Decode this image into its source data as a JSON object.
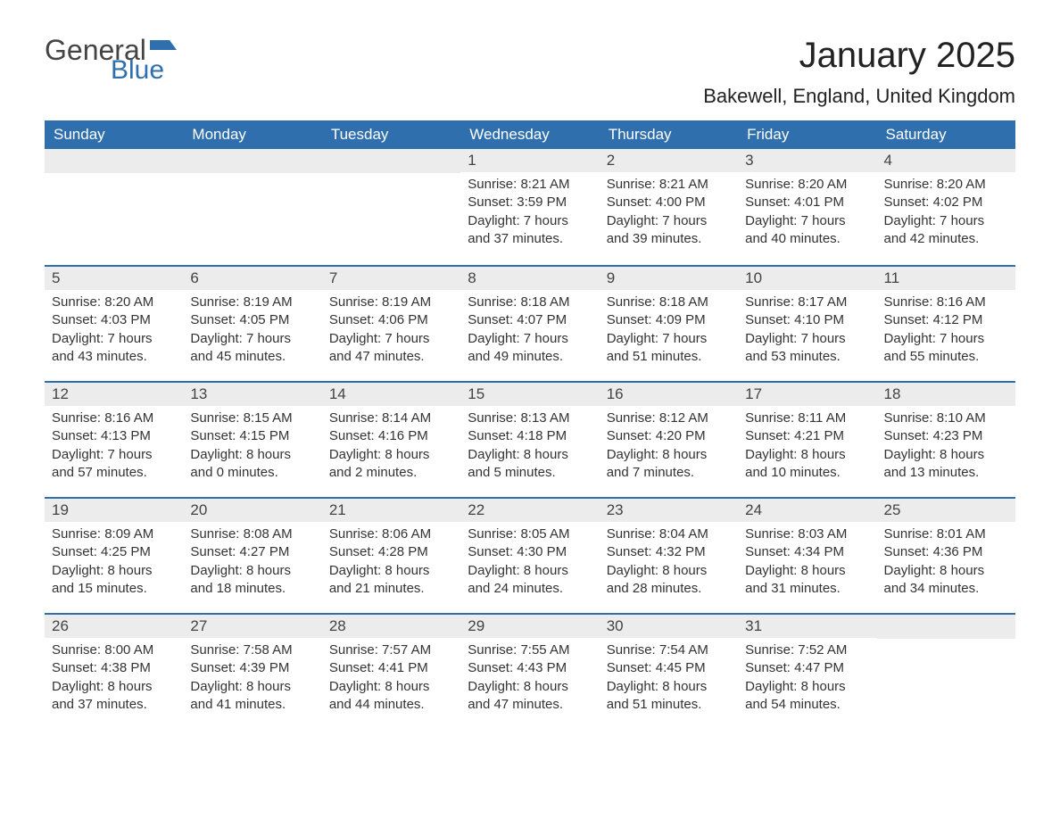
{
  "logo": {
    "general": "General",
    "blue": "Blue"
  },
  "title": "January 2025",
  "location": "Bakewell, England, United Kingdom",
  "colors": {
    "header_bg": "#2f6fad",
    "header_text": "#ffffff",
    "daynum_bg": "#ececec",
    "daynum_text": "#434343",
    "body_text": "#333333",
    "logo_gray": "#444444",
    "logo_blue": "#2f6fad",
    "week_border": "#2f6fad",
    "page_bg": "#ffffff"
  },
  "fonts": {
    "title_size": 40,
    "location_size": 22,
    "weekday_size": 17,
    "daynum_size": 17,
    "content_size": 15
  },
  "weekdays": [
    "Sunday",
    "Monday",
    "Tuesday",
    "Wednesday",
    "Thursday",
    "Friday",
    "Saturday"
  ],
  "weeks": [
    [
      null,
      null,
      null,
      {
        "n": "1",
        "sr": "Sunrise: 8:21 AM",
        "ss": "Sunset: 3:59 PM",
        "d1": "Daylight: 7 hours",
        "d2": "and 37 minutes."
      },
      {
        "n": "2",
        "sr": "Sunrise: 8:21 AM",
        "ss": "Sunset: 4:00 PM",
        "d1": "Daylight: 7 hours",
        "d2": "and 39 minutes."
      },
      {
        "n": "3",
        "sr": "Sunrise: 8:20 AM",
        "ss": "Sunset: 4:01 PM",
        "d1": "Daylight: 7 hours",
        "d2": "and 40 minutes."
      },
      {
        "n": "4",
        "sr": "Sunrise: 8:20 AM",
        "ss": "Sunset: 4:02 PM",
        "d1": "Daylight: 7 hours",
        "d2": "and 42 minutes."
      }
    ],
    [
      {
        "n": "5",
        "sr": "Sunrise: 8:20 AM",
        "ss": "Sunset: 4:03 PM",
        "d1": "Daylight: 7 hours",
        "d2": "and 43 minutes."
      },
      {
        "n": "6",
        "sr": "Sunrise: 8:19 AM",
        "ss": "Sunset: 4:05 PM",
        "d1": "Daylight: 7 hours",
        "d2": "and 45 minutes."
      },
      {
        "n": "7",
        "sr": "Sunrise: 8:19 AM",
        "ss": "Sunset: 4:06 PM",
        "d1": "Daylight: 7 hours",
        "d2": "and 47 minutes."
      },
      {
        "n": "8",
        "sr": "Sunrise: 8:18 AM",
        "ss": "Sunset: 4:07 PM",
        "d1": "Daylight: 7 hours",
        "d2": "and 49 minutes."
      },
      {
        "n": "9",
        "sr": "Sunrise: 8:18 AM",
        "ss": "Sunset: 4:09 PM",
        "d1": "Daylight: 7 hours",
        "d2": "and 51 minutes."
      },
      {
        "n": "10",
        "sr": "Sunrise: 8:17 AM",
        "ss": "Sunset: 4:10 PM",
        "d1": "Daylight: 7 hours",
        "d2": "and 53 minutes."
      },
      {
        "n": "11",
        "sr": "Sunrise: 8:16 AM",
        "ss": "Sunset: 4:12 PM",
        "d1": "Daylight: 7 hours",
        "d2": "and 55 minutes."
      }
    ],
    [
      {
        "n": "12",
        "sr": "Sunrise: 8:16 AM",
        "ss": "Sunset: 4:13 PM",
        "d1": "Daylight: 7 hours",
        "d2": "and 57 minutes."
      },
      {
        "n": "13",
        "sr": "Sunrise: 8:15 AM",
        "ss": "Sunset: 4:15 PM",
        "d1": "Daylight: 8 hours",
        "d2": "and 0 minutes."
      },
      {
        "n": "14",
        "sr": "Sunrise: 8:14 AM",
        "ss": "Sunset: 4:16 PM",
        "d1": "Daylight: 8 hours",
        "d2": "and 2 minutes."
      },
      {
        "n": "15",
        "sr": "Sunrise: 8:13 AM",
        "ss": "Sunset: 4:18 PM",
        "d1": "Daylight: 8 hours",
        "d2": "and 5 minutes."
      },
      {
        "n": "16",
        "sr": "Sunrise: 8:12 AM",
        "ss": "Sunset: 4:20 PM",
        "d1": "Daylight: 8 hours",
        "d2": "and 7 minutes."
      },
      {
        "n": "17",
        "sr": "Sunrise: 8:11 AM",
        "ss": "Sunset: 4:21 PM",
        "d1": "Daylight: 8 hours",
        "d2": "and 10 minutes."
      },
      {
        "n": "18",
        "sr": "Sunrise: 8:10 AM",
        "ss": "Sunset: 4:23 PM",
        "d1": "Daylight: 8 hours",
        "d2": "and 13 minutes."
      }
    ],
    [
      {
        "n": "19",
        "sr": "Sunrise: 8:09 AM",
        "ss": "Sunset: 4:25 PM",
        "d1": "Daylight: 8 hours",
        "d2": "and 15 minutes."
      },
      {
        "n": "20",
        "sr": "Sunrise: 8:08 AM",
        "ss": "Sunset: 4:27 PM",
        "d1": "Daylight: 8 hours",
        "d2": "and 18 minutes."
      },
      {
        "n": "21",
        "sr": "Sunrise: 8:06 AM",
        "ss": "Sunset: 4:28 PM",
        "d1": "Daylight: 8 hours",
        "d2": "and 21 minutes."
      },
      {
        "n": "22",
        "sr": "Sunrise: 8:05 AM",
        "ss": "Sunset: 4:30 PM",
        "d1": "Daylight: 8 hours",
        "d2": "and 24 minutes."
      },
      {
        "n": "23",
        "sr": "Sunrise: 8:04 AM",
        "ss": "Sunset: 4:32 PM",
        "d1": "Daylight: 8 hours",
        "d2": "and 28 minutes."
      },
      {
        "n": "24",
        "sr": "Sunrise: 8:03 AM",
        "ss": "Sunset: 4:34 PM",
        "d1": "Daylight: 8 hours",
        "d2": "and 31 minutes."
      },
      {
        "n": "25",
        "sr": "Sunrise: 8:01 AM",
        "ss": "Sunset: 4:36 PM",
        "d1": "Daylight: 8 hours",
        "d2": "and 34 minutes."
      }
    ],
    [
      {
        "n": "26",
        "sr": "Sunrise: 8:00 AM",
        "ss": "Sunset: 4:38 PM",
        "d1": "Daylight: 8 hours",
        "d2": "and 37 minutes."
      },
      {
        "n": "27",
        "sr": "Sunrise: 7:58 AM",
        "ss": "Sunset: 4:39 PM",
        "d1": "Daylight: 8 hours",
        "d2": "and 41 minutes."
      },
      {
        "n": "28",
        "sr": "Sunrise: 7:57 AM",
        "ss": "Sunset: 4:41 PM",
        "d1": "Daylight: 8 hours",
        "d2": "and 44 minutes."
      },
      {
        "n": "29",
        "sr": "Sunrise: 7:55 AM",
        "ss": "Sunset: 4:43 PM",
        "d1": "Daylight: 8 hours",
        "d2": "and 47 minutes."
      },
      {
        "n": "30",
        "sr": "Sunrise: 7:54 AM",
        "ss": "Sunset: 4:45 PM",
        "d1": "Daylight: 8 hours",
        "d2": "and 51 minutes."
      },
      {
        "n": "31",
        "sr": "Sunrise: 7:52 AM",
        "ss": "Sunset: 4:47 PM",
        "d1": "Daylight: 8 hours",
        "d2": "and 54 minutes."
      },
      null
    ]
  ]
}
